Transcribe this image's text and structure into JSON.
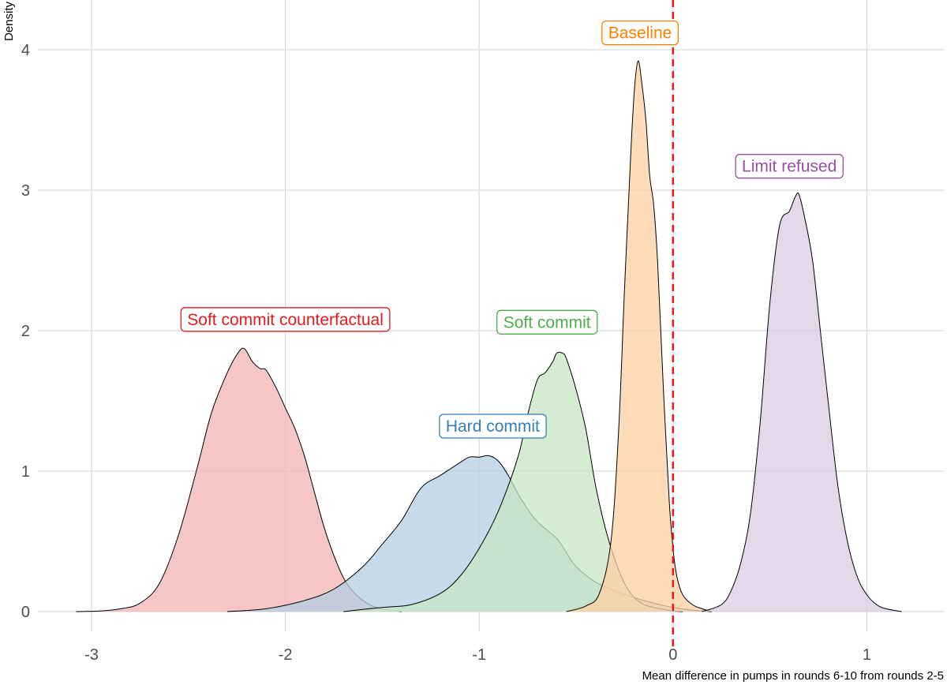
{
  "chart_data": {
    "type": "area",
    "title": "",
    "xlabel": "Mean difference in pumps in rounds 6-10 from rounds 2-5",
    "ylabel": "Density",
    "xlim": [
      -3.1,
      1.2
    ],
    "ylim": [
      0,
      4.1
    ],
    "x_ticks": [
      {
        "value": -3,
        "label": "-3"
      },
      {
        "value": -2,
        "label": "-2"
      },
      {
        "value": -1,
        "label": "-1"
      },
      {
        "value": 0,
        "label": "0"
      },
      {
        "value": 1,
        "label": "1"
      }
    ],
    "y_ticks": [
      {
        "value": 0,
        "label": "0"
      },
      {
        "value": 1,
        "label": "1"
      },
      {
        "value": 2,
        "label": "2"
      },
      {
        "value": 3,
        "label": "3"
      },
      {
        "value": 4,
        "label": "4"
      }
    ],
    "grid": true,
    "reference_line": {
      "x": 0,
      "color": "#e41a1c",
      "style": "dashed"
    },
    "series": [
      {
        "name": "Soft commit counterfactual",
        "fill": "#f4b4b4",
        "stroke": "#e41a1c",
        "label_at": [
          -2.0,
          2.08
        ],
        "x": [
          -3.08,
          -2.95,
          -2.85,
          -2.75,
          -2.65,
          -2.55,
          -2.45,
          -2.38,
          -2.3,
          -2.24,
          -2.21,
          -2.17,
          -2.13,
          -2.1,
          -2.05,
          -2.0,
          -1.95,
          -1.9,
          -1.85,
          -1.8,
          -1.75,
          -1.7,
          -1.65,
          -1.6,
          -1.55,
          -1.5,
          -1.45,
          -1.4
        ],
        "values": [
          0,
          0.005,
          0.02,
          0.06,
          0.2,
          0.55,
          1.05,
          1.42,
          1.7,
          1.85,
          1.87,
          1.78,
          1.73,
          1.72,
          1.6,
          1.45,
          1.3,
          1.1,
          0.85,
          0.6,
          0.4,
          0.24,
          0.14,
          0.08,
          0.04,
          0.02,
          0.008,
          0
        ]
      },
      {
        "name": "Hard commit",
        "fill": "#b3cde3",
        "stroke": "#377eb8",
        "label_at": [
          -0.93,
          1.32
        ],
        "x": [
          -2.3,
          -2.1,
          -1.9,
          -1.75,
          -1.6,
          -1.5,
          -1.4,
          -1.3,
          -1.2,
          -1.1,
          -1.05,
          -1.0,
          -0.95,
          -0.9,
          -0.85,
          -0.8,
          -0.75,
          -0.7,
          -0.6,
          -0.55,
          -0.5,
          -0.4,
          -0.3,
          -0.2,
          -0.1,
          0.0,
          0.1,
          0.2
        ],
        "values": [
          0,
          0.02,
          0.08,
          0.16,
          0.32,
          0.48,
          0.65,
          0.88,
          0.97,
          1.06,
          1.1,
          1.1,
          1.11,
          1.07,
          0.97,
          0.84,
          0.73,
          0.64,
          0.52,
          0.42,
          0.32,
          0.21,
          0.15,
          0.1,
          0.06,
          0.03,
          0.01,
          0
        ]
      },
      {
        "name": "Soft commit",
        "fill": "#c7e6c3",
        "stroke": "#4daf4a",
        "label_at": [
          -0.65,
          2.06
        ],
        "x": [
          -1.7,
          -1.5,
          -1.35,
          -1.2,
          -1.1,
          -1.0,
          -0.9,
          -0.8,
          -0.75,
          -0.7,
          -0.66,
          -0.62,
          -0.6,
          -0.57,
          -0.55,
          -0.5,
          -0.45,
          -0.4,
          -0.35,
          -0.3,
          -0.25,
          -0.2,
          -0.15,
          -0.1,
          -0.05,
          0.0,
          0.05
        ],
        "values": [
          0,
          0.03,
          0.05,
          0.13,
          0.25,
          0.45,
          0.72,
          1.1,
          1.4,
          1.65,
          1.7,
          1.78,
          1.84,
          1.84,
          1.8,
          1.58,
          1.3,
          0.9,
          0.6,
          0.37,
          0.2,
          0.1,
          0.05,
          0.03,
          0.015,
          0.005,
          0
        ]
      },
      {
        "name": "Baseline",
        "fill": "#fdd0a2",
        "stroke": "#ff7f00",
        "label_at": [
          -0.17,
          4.12
        ],
        "x": [
          -0.55,
          -0.45,
          -0.38,
          -0.32,
          -0.28,
          -0.25,
          -0.22,
          -0.2,
          -0.18,
          -0.16,
          -0.14,
          -0.12,
          -0.1,
          -0.08,
          -0.05,
          -0.02,
          0.0,
          0.02,
          0.05,
          0.1,
          0.15,
          0.2
        ],
        "values": [
          0,
          0.04,
          0.13,
          0.5,
          1.3,
          2.3,
          3.2,
          3.7,
          3.92,
          3.75,
          3.5,
          3.1,
          2.9,
          2.5,
          1.6,
          0.8,
          0.45,
          0.25,
          0.12,
          0.05,
          0.02,
          0
        ]
      },
      {
        "name": "Limit refused",
        "fill": "#decbe4",
        "stroke": "#984ea3",
        "label_at": [
          0.6,
          3.17
        ],
        "x": [
          0.15,
          0.25,
          0.3,
          0.35,
          0.4,
          0.45,
          0.5,
          0.55,
          0.6,
          0.63,
          0.65,
          0.68,
          0.72,
          0.76,
          0.8,
          0.85,
          0.9,
          0.95,
          1.0,
          1.05,
          1.1,
          1.18
        ],
        "values": [
          0,
          0.05,
          0.15,
          0.35,
          0.7,
          1.35,
          2.2,
          2.75,
          2.85,
          2.95,
          2.97,
          2.8,
          2.5,
          2.0,
          1.5,
          0.9,
          0.5,
          0.25,
          0.12,
          0.05,
          0.02,
          0
        ]
      }
    ]
  }
}
